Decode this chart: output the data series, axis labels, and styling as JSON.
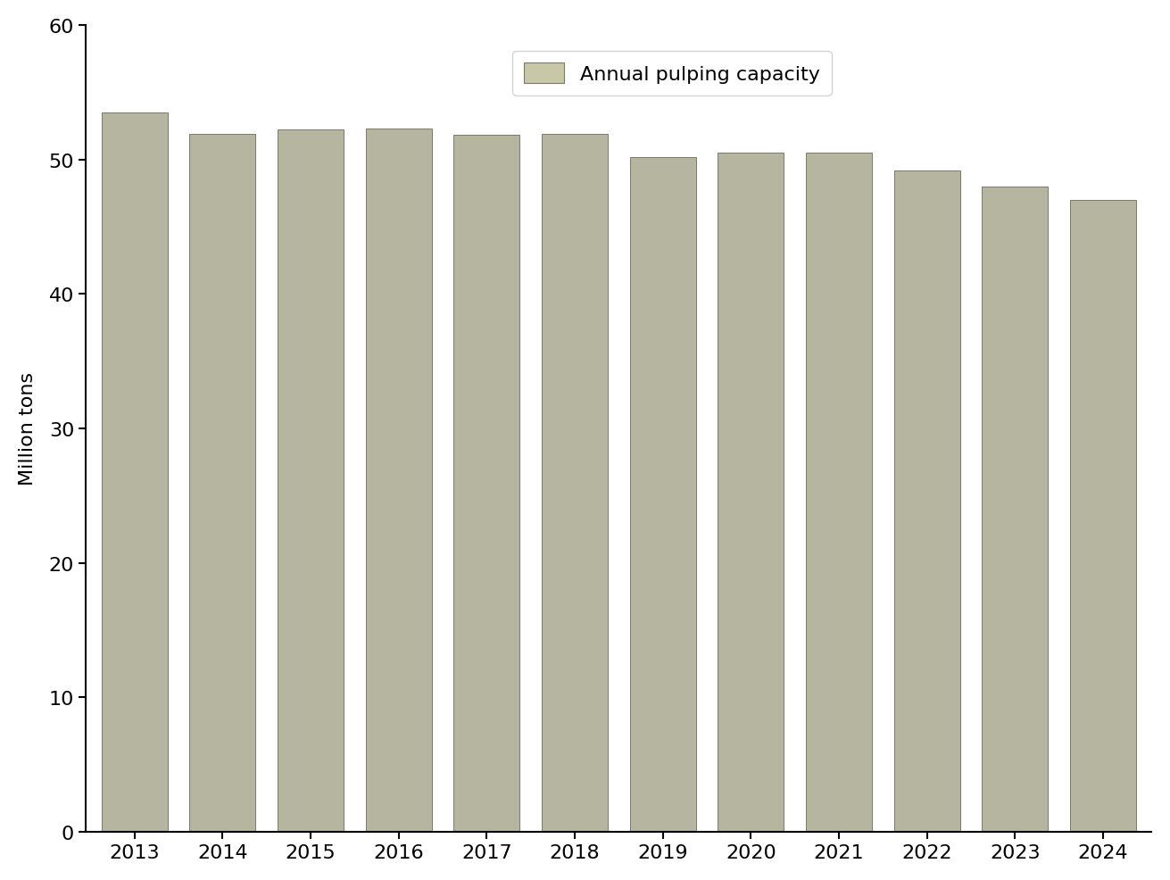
{
  "years": [
    2013,
    2014,
    2015,
    2016,
    2017,
    2018,
    2019,
    2020,
    2021,
    2022,
    2023,
    2024
  ],
  "values": [
    53.5,
    51.9,
    52.2,
    52.3,
    51.8,
    51.9,
    50.2,
    50.5,
    50.5,
    49.2,
    48.0,
    47.0
  ],
  "bar_color": "#b5b5a0",
  "bar_edgecolor": "#7a7a6a",
  "legend_label": "Annual pulping capacity",
  "ylabel": "Million tons",
  "ylim": [
    0,
    60
  ],
  "yticks": [
    0,
    10,
    20,
    30,
    40,
    50,
    60
  ],
  "background_color": "#ffffff",
  "bar_width": 0.75,
  "legend_facecolor": "#c8c8a8"
}
